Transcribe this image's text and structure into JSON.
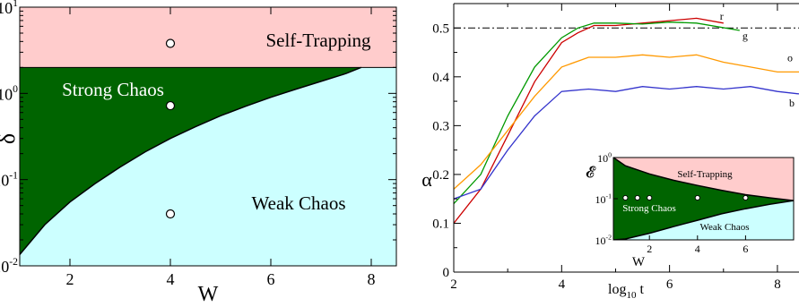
{
  "chart_data": [
    {
      "type": "area",
      "xlabel": "W",
      "ylabel": "δ",
      "xlim": [
        1,
        8.5
      ],
      "ylim": [
        0.01,
        10
      ],
      "yscale": "log",
      "x_ticks": [
        2,
        4,
        6,
        8
      ],
      "y_ticks": [
        {
          "value": 0.01,
          "mantissa": "10",
          "exp": "-2"
        },
        {
          "value": 0.1,
          "mantissa": "10",
          "exp": "-1"
        },
        {
          "value": 1,
          "mantissa": "10",
          "exp": "0"
        },
        {
          "value": 10,
          "mantissa": "10",
          "exp": "1"
        }
      ],
      "regions": [
        {
          "label": "Self-Trapping",
          "color": "#ffcccc"
        },
        {
          "label": "Strong Chaos",
          "color": "#006400"
        },
        {
          "label": "Weak Chaos",
          "color": "#ccffff"
        }
      ],
      "self_trapping_boundary": 2,
      "chaos_boundary": {
        "x": [
          1,
          1.5,
          2,
          2.5,
          3,
          3.5,
          4,
          4.5,
          5,
          5.5,
          6,
          6.5,
          7,
          7.5,
          7.8
        ],
        "y": [
          0.0135,
          0.03,
          0.055,
          0.09,
          0.14,
          0.21,
          0.3,
          0.41,
          0.55,
          0.71,
          0.9,
          1.12,
          1.38,
          1.7,
          2.0
        ]
      },
      "points": [
        {
          "x": 4,
          "y": 3.8
        },
        {
          "x": 4,
          "y": 0.72
        },
        {
          "x": 4,
          "y": 0.04
        }
      ]
    },
    {
      "type": "line",
      "xlabel_main": "log",
      "xlabel_sub": "10",
      "xlabel_tail": " t",
      "ylabel": "α",
      "xlim": [
        2,
        8.4
      ],
      "ylim": [
        0,
        0.55
      ],
      "x_ticks": [
        2,
        4,
        6,
        8
      ],
      "y_ticks": [
        "0",
        "0.1",
        "0.2",
        "0.3",
        "0.4",
        "0.5"
      ],
      "y_tick_values": [
        0,
        0.1,
        0.2,
        0.3,
        0.4,
        0.5
      ],
      "reference_line": 0.5,
      "series": [
        {
          "name": "r",
          "color": "#cc0000",
          "x": [
            2,
            2.5,
            3,
            3.5,
            4,
            4.3,
            4.6,
            5,
            5.5,
            6,
            6.5,
            7
          ],
          "y": [
            0.1,
            0.17,
            0.28,
            0.39,
            0.47,
            0.49,
            0.505,
            0.505,
            0.51,
            0.515,
            0.52,
            0.51
          ]
        },
        {
          "name": "g",
          "color": "#009900",
          "x": [
            2,
            2.5,
            3,
            3.5,
            4,
            4.3,
            4.6,
            5,
            5.5,
            6,
            6.5,
            7.3
          ],
          "y": [
            0.14,
            0.2,
            0.32,
            0.42,
            0.48,
            0.5,
            0.51,
            0.51,
            0.508,
            0.512,
            0.51,
            0.495
          ]
        },
        {
          "name": "o",
          "color": "#ff9900",
          "x": [
            2,
            2.5,
            3,
            3.5,
            4,
            4.5,
            5,
            5.5,
            6,
            6.5,
            7,
            7.5,
            8,
            8.4
          ],
          "y": [
            0.17,
            0.22,
            0.29,
            0.36,
            0.42,
            0.44,
            0.44,
            0.445,
            0.44,
            0.445,
            0.43,
            0.42,
            0.41,
            0.41
          ]
        },
        {
          "name": "b",
          "color": "#3333cc",
          "x": [
            2,
            2.5,
            3,
            3.5,
            4,
            4.5,
            5,
            5.5,
            6,
            6.5,
            7,
            7.5,
            8,
            8.4
          ],
          "y": [
            0.15,
            0.17,
            0.25,
            0.32,
            0.37,
            0.375,
            0.37,
            0.38,
            0.375,
            0.38,
            0.375,
            0.38,
            0.37,
            0.365
          ]
        }
      ],
      "inset": {
        "xlabel": "W",
        "ylabel": "𝓔",
        "xlim": [
          0.5,
          8
        ],
        "ylim": [
          0.01,
          1
        ],
        "yscale": "log",
        "x_ticks": [
          2,
          4,
          6
        ],
        "y_ticks": [
          {
            "value": 0.01,
            "mantissa": "10",
            "exp": "-2"
          },
          {
            "value": 0.1,
            "mantissa": "10",
            "exp": "-1"
          },
          {
            "value": 1,
            "mantissa": "10",
            "exp": "0"
          }
        ],
        "regions": [
          {
            "label": "Self-Trapping",
            "color": "#ffcccc"
          },
          {
            "label": "Strong Chaos",
            "color": "#006400"
          },
          {
            "label": "Weak Chaos",
            "color": "#ccffff"
          }
        ],
        "upper_boundary": {
          "x": [
            0.5,
            1,
            2,
            3,
            4,
            5,
            6,
            7,
            8
          ],
          "y": [
            1,
            0.63,
            0.4,
            0.28,
            0.21,
            0.16,
            0.125,
            0.105,
            0.09
          ]
        },
        "lower_boundary": {
          "x": [
            0.5,
            1,
            2,
            3,
            4,
            5,
            6,
            7,
            8
          ],
          "y": [
            0.01,
            0.0105,
            0.0145,
            0.021,
            0.03,
            0.043,
            0.057,
            0.073,
            0.09
          ]
        },
        "points": [
          {
            "x": 1,
            "y": 0.105
          },
          {
            "x": 1.5,
            "y": 0.105
          },
          {
            "x": 2,
            "y": 0.105
          },
          {
            "x": 4,
            "y": 0.105
          },
          {
            "x": 6,
            "y": 0.105
          }
        ]
      }
    }
  ]
}
